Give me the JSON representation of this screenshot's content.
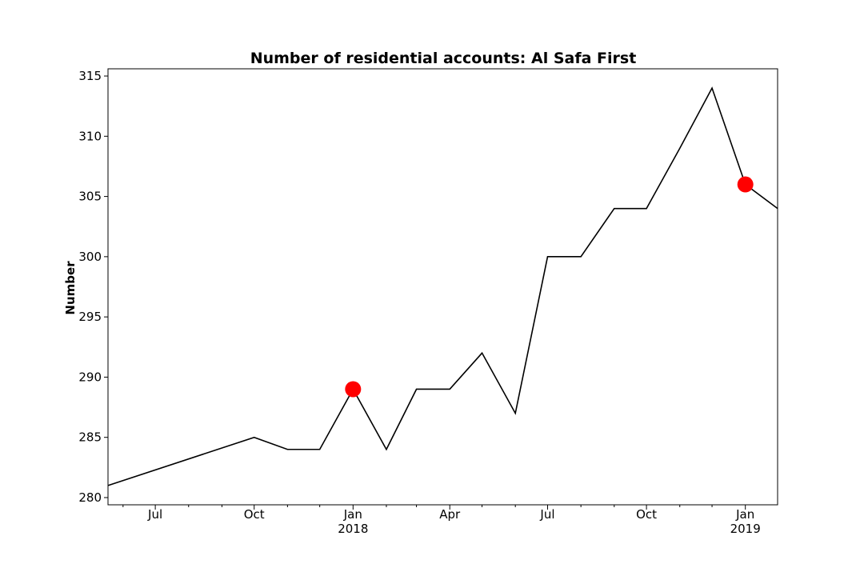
{
  "chart_data": {
    "type": "line",
    "title": "Number of residential accounts: Al Safa First",
    "xlabel": "",
    "ylabel": "Number",
    "xlim": [
      "2017-05-18",
      "2019-01-31"
    ],
    "ylim": [
      279.4,
      315.6
    ],
    "y_ticks": [
      280,
      285,
      290,
      295,
      300,
      305,
      310,
      315
    ],
    "x_ticks": [
      {
        "date": "2017-07-01",
        "label": "Jul",
        "sublabel": ""
      },
      {
        "date": "2017-10-01",
        "label": "Oct",
        "sublabel": ""
      },
      {
        "date": "2018-01-01",
        "label": "Jan",
        "sublabel": "2018"
      },
      {
        "date": "2018-04-01",
        "label": "Apr",
        "sublabel": ""
      },
      {
        "date": "2018-07-01",
        "label": "Jul",
        "sublabel": ""
      },
      {
        "date": "2018-10-01",
        "label": "Oct",
        "sublabel": ""
      },
      {
        "date": "2019-01-01",
        "label": "Jan",
        "sublabel": "2019"
      }
    ],
    "minor_x_ticks": [
      "2017-06-01",
      "2017-08-01",
      "2017-09-01",
      "2017-11-01",
      "2017-12-01",
      "2018-02-01",
      "2018-03-01",
      "2018-05-01",
      "2018-06-01",
      "2018-08-01",
      "2018-09-01",
      "2018-11-01",
      "2018-12-01"
    ],
    "grid": false,
    "series": [
      {
        "color": "#000000",
        "points": [
          {
            "x": "2017-05-18",
            "y": 281
          },
          {
            "x": "2017-10-01",
            "y": 285
          },
          {
            "x": "2017-11-01",
            "y": 284
          },
          {
            "x": "2017-12-01",
            "y": 284
          },
          {
            "x": "2018-01-01",
            "y": 289
          },
          {
            "x": "2018-02-01",
            "y": 284
          },
          {
            "x": "2018-03-01",
            "y": 289
          },
          {
            "x": "2018-04-01",
            "y": 289
          },
          {
            "x": "2018-05-01",
            "y": 292
          },
          {
            "x": "2018-06-01",
            "y": 287
          },
          {
            "x": "2018-07-01",
            "y": 300
          },
          {
            "x": "2018-08-01",
            "y": 300
          },
          {
            "x": "2018-09-01",
            "y": 304
          },
          {
            "x": "2018-10-01",
            "y": 304
          },
          {
            "x": "2018-11-01",
            "y": 309
          },
          {
            "x": "2018-12-01",
            "y": 314
          },
          {
            "x": "2019-01-01",
            "y": 306
          },
          {
            "x": "2019-01-31",
            "y": 304
          }
        ]
      }
    ],
    "highlights": [
      {
        "x": "2018-01-01",
        "y": 289,
        "color": "#ff0000"
      },
      {
        "x": "2019-01-01",
        "y": 306,
        "color": "#ff0000"
      }
    ]
  }
}
